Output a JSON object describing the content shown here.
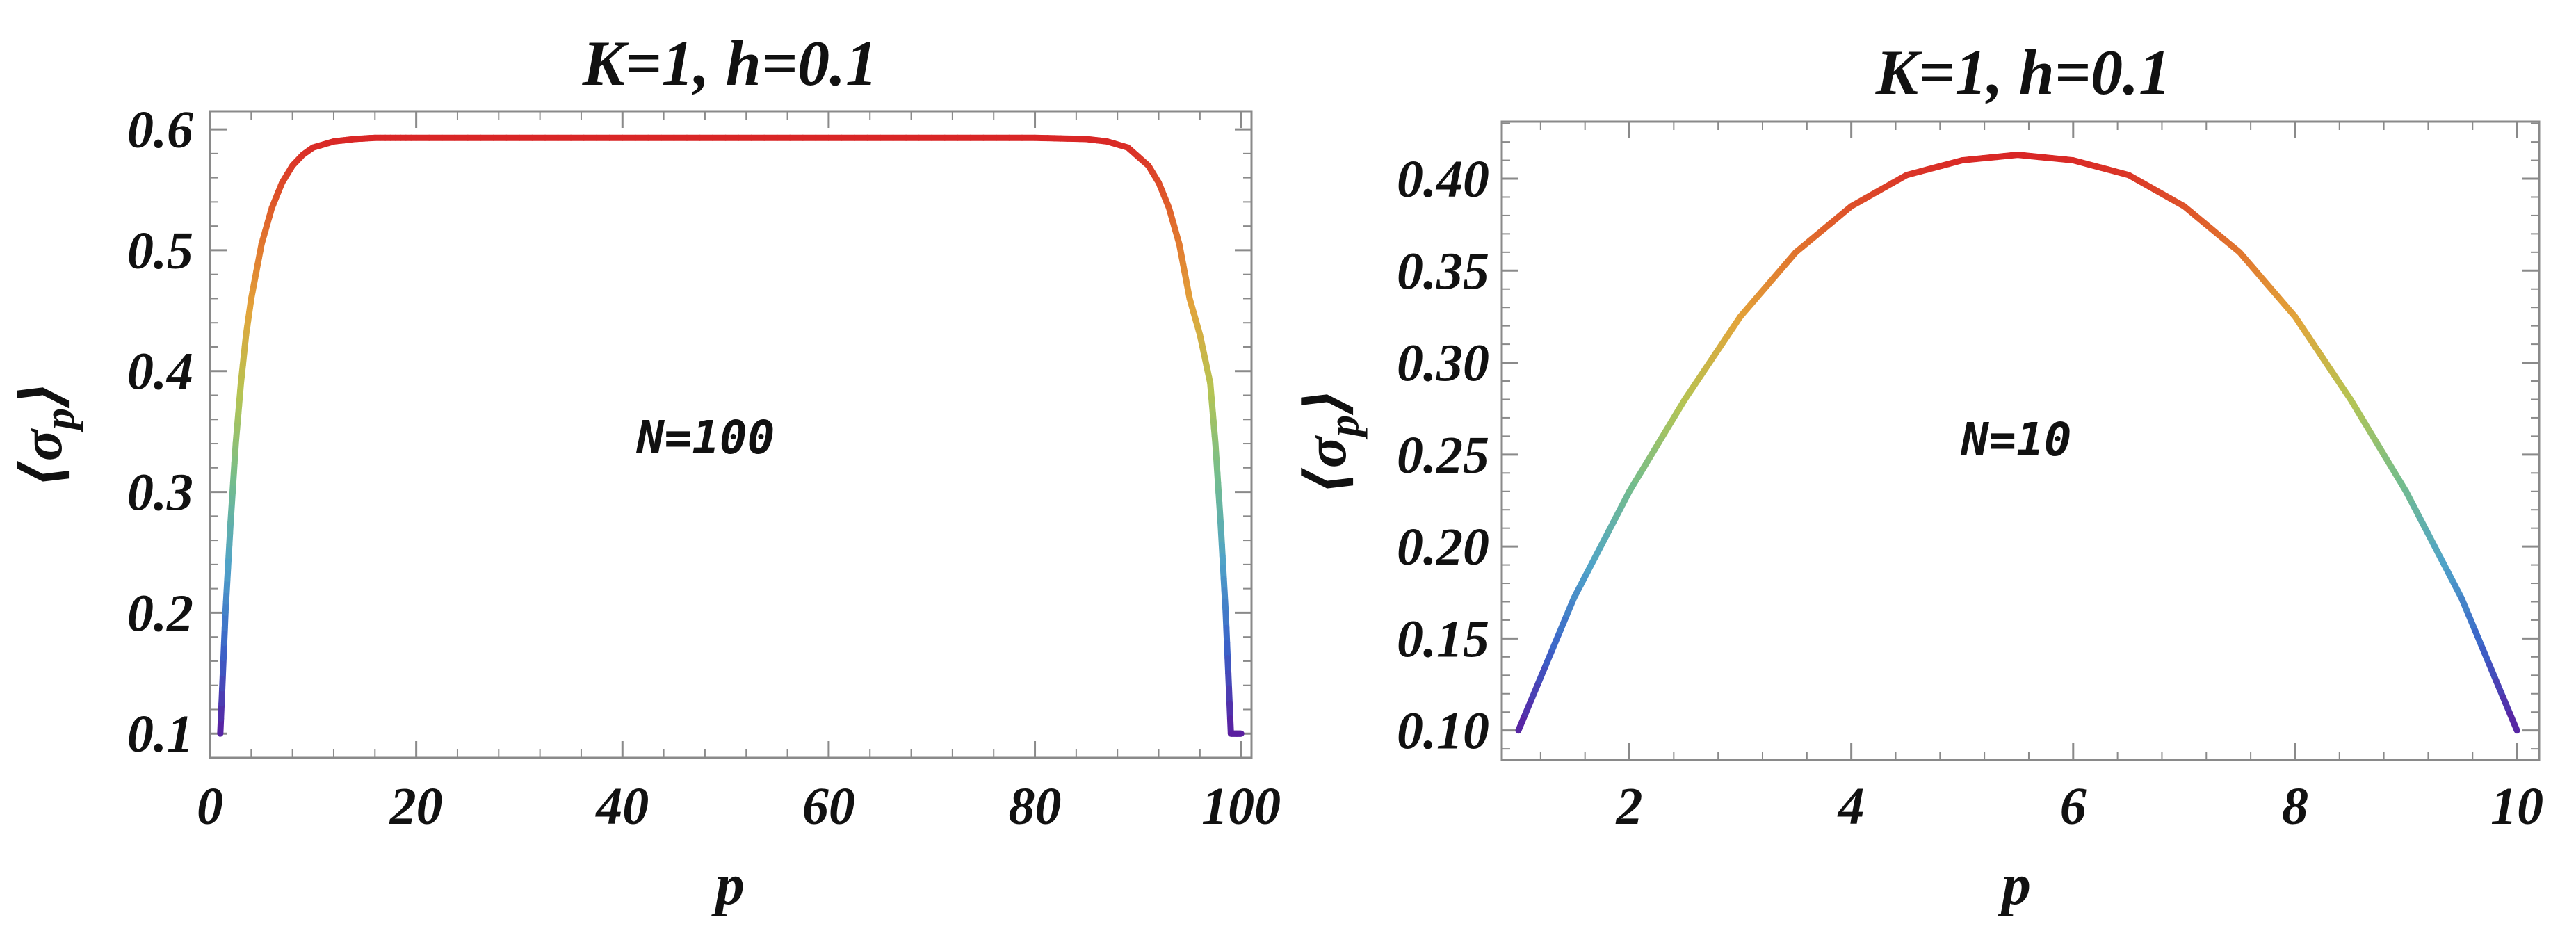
{
  "chart_data": [
    {
      "type": "line",
      "title": "K=1, h=0.1",
      "xlabel": "p",
      "ylabel_parts": [
        "⟨",
        "σ",
        "p",
        "⟩"
      ],
      "annotation": "N=100",
      "xlim": [
        0,
        101
      ],
      "ylim": [
        0.08,
        0.615
      ],
      "xticks": [
        0,
        20,
        40,
        60,
        80,
        100
      ],
      "xtick_labels": [
        "0",
        "20",
        "40",
        "60",
        "80",
        "100"
      ],
      "yticks": [
        0.1,
        0.2,
        0.3,
        0.4,
        0.5,
        0.6
      ],
      "ytick_labels": [
        "0.1",
        "0.2",
        "0.3",
        "0.4",
        "0.5",
        "0.6"
      ],
      "series": [
        {
          "x": [
            1,
            1.5,
            2,
            2.5,
            3,
            3.5,
            4,
            5,
            6,
            7,
            8,
            9,
            10,
            12,
            14,
            16,
            20,
            30,
            40,
            50,
            60,
            70,
            80,
            85,
            87,
            89,
            91,
            92,
            93,
            94,
            95,
            96,
            97,
            97.5,
            98,
            98.5,
            99,
            99.5,
            100
          ],
          "y": [
            0.1,
            0.2,
            0.275,
            0.34,
            0.39,
            0.43,
            0.46,
            0.505,
            0.535,
            0.556,
            0.57,
            0.579,
            0.585,
            0.59,
            0.592,
            0.593,
            0.593,
            0.593,
            0.593,
            0.593,
            0.593,
            0.593,
            0.593,
            0.592,
            0.59,
            0.585,
            0.57,
            0.556,
            0.535,
            0.505,
            0.46,
            0.43,
            0.39,
            0.34,
            0.275,
            0.2,
            0.1,
            0.1,
            0.1
          ]
        }
      ],
      "colormap": [
        "#5a1fa0",
        "#3a62c8",
        "#4fa3c8",
        "#74bd8c",
        "#b5c453",
        "#e2a43a",
        "#e06a2c",
        "#d92626"
      ]
    },
    {
      "type": "line",
      "title": "K=1, h=0.1",
      "xlabel": "p",
      "ylabel_parts": [
        "⟨",
        "σ",
        "p",
        "⟩"
      ],
      "annotation": "N=10",
      "xlim": [
        0.85,
        10.2
      ],
      "ylim": [
        0.084,
        0.431
      ],
      "xticks": [
        2,
        4,
        6,
        8,
        10
      ],
      "xtick_labels": [
        "2",
        "4",
        "6",
        "8",
        "10"
      ],
      "yticks": [
        0.1,
        0.15,
        0.2,
        0.25,
        0.3,
        0.35,
        0.4
      ],
      "ytick_labels": [
        "0.10",
        "0.15",
        "0.20",
        "0.25",
        "0.30",
        "0.35",
        "0.40"
      ],
      "series": [
        {
          "x": [
            1,
            1.5,
            2,
            2.5,
            3,
            3.5,
            4,
            4.5,
            5,
            5.5,
            6,
            6.5,
            7,
            7.5,
            8,
            8.5,
            9,
            9.5,
            10
          ],
          "y": [
            0.1,
            0.172,
            0.23,
            0.28,
            0.325,
            0.36,
            0.385,
            0.402,
            0.41,
            0.413,
            0.41,
            0.402,
            0.385,
            0.36,
            0.325,
            0.28,
            0.23,
            0.172,
            0.1
          ]
        }
      ],
      "colormap": [
        "#5a1fa0",
        "#3a62c8",
        "#4fa3c8",
        "#74bd8c",
        "#b5c453",
        "#e2a43a",
        "#e06a2c",
        "#d92626"
      ]
    }
  ]
}
